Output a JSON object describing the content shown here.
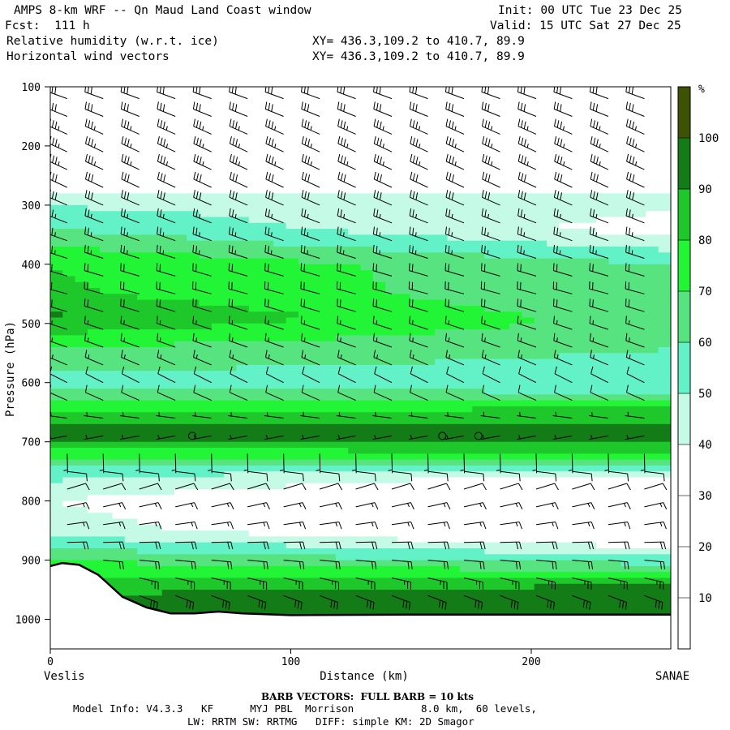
{
  "header": {
    "line1_left": "AMPS 8-km WRF -- Qn Maud Land Coast window",
    "line1_right": "Init: 00 UTC Tue 23 Dec 25",
    "line2_left": "Fcst:  111 h",
    "line2_right": "Valid: 15 UTC Sat 27 Dec 25",
    "line3_left": "Relative humidity (w.r.t. ice)",
    "line3_right": "XY= 436.3,109.2 to 410.7, 89.9",
    "line4_left": "Horizontal wind vectors",
    "line4_right": "XY= 436.3,109.2 to 410.7, 89.9"
  },
  "footer": {
    "barb_note": "BARB VECTORS:  FULL BARB = 10 kts",
    "model_info": "Model Info: V4.3.3   KF      MYJ PBL  Morrison           8.0 km,  60 levels,",
    "physics": "LW: RRTM SW: RRTMG   DIFF: simple KM: 2D Smagor"
  },
  "chart_data": {
    "type": "heatmap",
    "title": "",
    "xlabel": "Distance (km)",
    "ylabel": "Pressure (hPa)",
    "xlim": [
      0,
      258
    ],
    "ylim": [
      1050,
      100
    ],
    "x_ticks": [
      0,
      100,
      200
    ],
    "y_ticks": [
      100,
      200,
      300,
      400,
      500,
      600,
      700,
      800,
      900,
      1000
    ],
    "x_end_labels": {
      "left": "Veslis",
      "right": "SANAE"
    },
    "colorbar": {
      "unit": "%",
      "levels": [
        10,
        20,
        30,
        40,
        50,
        60,
        70,
        80,
        90,
        100
      ],
      "colors": [
        "#ffffff",
        "#ffffff",
        "#ffffff",
        "#c4fae6",
        "#63f2c8",
        "#57e480",
        "#22f536",
        "#1fc82a",
        "#137c17",
        "#3e5206"
      ]
    },
    "rh_profile_left": [
      {
        "p": 100,
        "rh": 5
      },
      {
        "p": 270,
        "rh": 8
      },
      {
        "p": 285,
        "rh": 45
      },
      {
        "p": 340,
        "rh": 60
      },
      {
        "p": 400,
        "rh": 80
      },
      {
        "p": 450,
        "rh": 82
      },
      {
        "p": 490,
        "rh": 92
      },
      {
        "p": 540,
        "rh": 70
      },
      {
        "p": 600,
        "rh": 55
      },
      {
        "p": 650,
        "rh": 78
      },
      {
        "p": 680,
        "rh": 100
      },
      {
        "p": 710,
        "rh": 80
      },
      {
        "p": 750,
        "rh": 55
      },
      {
        "p": 800,
        "rh": 40
      },
      {
        "p": 850,
        "rh": 45
      },
      {
        "p": 900,
        "rh": 70
      },
      {
        "p": 940,
        "rh": 85
      },
      {
        "p": 980,
        "rh": 95
      }
    ],
    "rh_profile_right": [
      {
        "p": 100,
        "rh": 5
      },
      {
        "p": 270,
        "rh": 8
      },
      {
        "p": 285,
        "rh": 45
      },
      {
        "p": 340,
        "rh": 35
      },
      {
        "p": 400,
        "rh": 60
      },
      {
        "p": 450,
        "rh": 60
      },
      {
        "p": 500,
        "rh": 65
      },
      {
        "p": 560,
        "rh": 58
      },
      {
        "p": 610,
        "rh": 55
      },
      {
        "p": 640,
        "rh": 80
      },
      {
        "p": 690,
        "rh": 100
      },
      {
        "p": 720,
        "rh": 80
      },
      {
        "p": 760,
        "rh": 35
      },
      {
        "p": 800,
        "rh": 15
      },
      {
        "p": 850,
        "rh": 20
      },
      {
        "p": 900,
        "rh": 55
      },
      {
        "p": 950,
        "rh": 95
      },
      {
        "p": 985,
        "rh": 100
      }
    ],
    "terrain": [
      {
        "x": 0,
        "p": 910
      },
      {
        "x": 5,
        "p": 905
      },
      {
        "x": 12,
        "p": 908
      },
      {
        "x": 20,
        "p": 925
      },
      {
        "x": 30,
        "p": 962
      },
      {
        "x": 40,
        "p": 980
      },
      {
        "x": 50,
        "p": 990
      },
      {
        "x": 60,
        "p": 990
      },
      {
        "x": 70,
        "p": 987
      },
      {
        "x": 80,
        "p": 990
      },
      {
        "x": 100,
        "p": 993
      },
      {
        "x": 150,
        "p": 992
      },
      {
        "x": 200,
        "p": 992
      },
      {
        "x": 258,
        "p": 992
      }
    ],
    "wind_barbs": {
      "columns_x": [
        7,
        22,
        37,
        52,
        67,
        82,
        97,
        112,
        127,
        142,
        157,
        172,
        187,
        202,
        217,
        232,
        247
      ],
      "levels_p": [
        120,
        150,
        180,
        210,
        240,
        270,
        300,
        330,
        360,
        390,
        420,
        450,
        480,
        510,
        540,
        570,
        600,
        630,
        660,
        690,
        720,
        750,
        780,
        810,
        840,
        870,
        900,
        930,
        960
      ],
      "profile": [
        {
          "p": 120,
          "dir": 290,
          "kts": 30
        },
        {
          "p": 200,
          "dir": 295,
          "kts": 35
        },
        {
          "p": 280,
          "dir": 295,
          "kts": 30
        },
        {
          "p": 350,
          "dir": 290,
          "kts": 25
        },
        {
          "p": 450,
          "dir": 285,
          "kts": 20
        },
        {
          "p": 550,
          "dir": 290,
          "kts": 15
        },
        {
          "p": 620,
          "dir": 300,
          "kts": 10
        },
        {
          "p": 690,
          "dir": 260,
          "kts": 5
        },
        {
          "p": 760,
          "dir": 70,
          "kts": 10
        },
        {
          "p": 830,
          "dir": 80,
          "kts": 15
        },
        {
          "p": 900,
          "dir": 95,
          "kts": 20
        },
        {
          "p": 960,
          "dir": 110,
          "kts": 30
        }
      ],
      "calm_points": [
        {
          "x": 59,
          "p": 690
        },
        {
          "x": 163,
          "p": 690
        },
        {
          "x": 178,
          "p": 690
        }
      ]
    }
  }
}
